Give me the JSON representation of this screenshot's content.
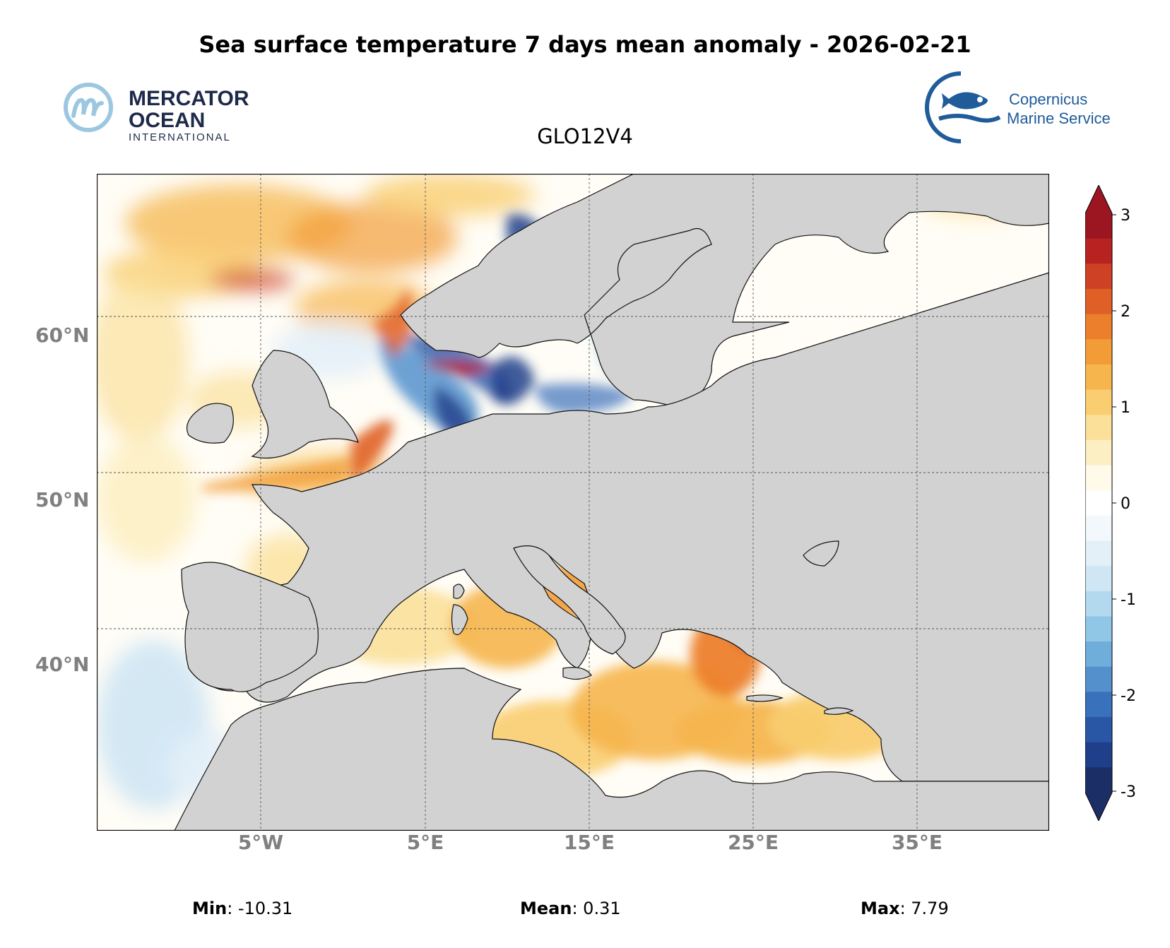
{
  "title": "Sea surface temperature 7 days mean anomaly - 2026-02-21",
  "subtitle": "GLO12V4",
  "logos": {
    "left": {
      "line1": "MERCATOR",
      "line2": "OCEAN",
      "line3": "INTERNATIONAL",
      "icon": "mercator-m-icon"
    },
    "right": {
      "line1": "Copernicus",
      "line2": "Marine Service",
      "icon": "copernicus-fish-icon"
    }
  },
  "axes": {
    "lat_labels": [
      "60°N",
      "50°N",
      "40°N"
    ],
    "lon_labels": [
      "5°W",
      "5°E",
      "15°E",
      "25°E",
      "35°E"
    ]
  },
  "colorbar": {
    "tick_labels": [
      "3",
      "2",
      "1",
      "0",
      "-1",
      "-2",
      "-3"
    ],
    "colors": [
      "#1b2f66",
      "#203f8a",
      "#2a56a6",
      "#3a71bb",
      "#5390cc",
      "#6fadda",
      "#90c6e6",
      "#b3d9ef",
      "#cfe6f4",
      "#e4f0f8",
      "#f2f8fc",
      "#ffffff",
      "#fffaea",
      "#fdefc4",
      "#fbe09a",
      "#f9cd70",
      "#f6b54d",
      "#f29c38",
      "#ec7f2b",
      "#e05f26",
      "#cf4124",
      "#b82322",
      "#9b1620"
    ]
  },
  "colors": {
    "land": "#d2d2d2",
    "coastline": "#111111",
    "gridline": "#555555",
    "axis_label": "#808080"
  },
  "stats": {
    "min_label": "Min",
    "min_value": ": -10.31",
    "mean_label": "Mean",
    "mean_value": ": 0.31",
    "max_label": "Max",
    "max_value": ": 7.79"
  }
}
